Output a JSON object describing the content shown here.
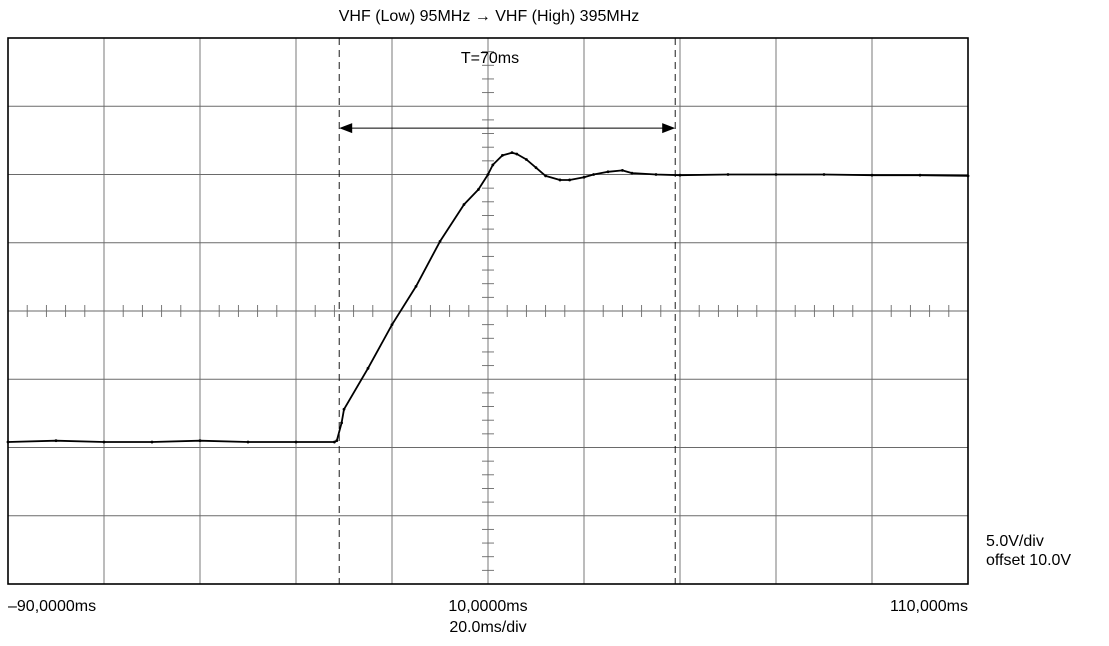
{
  "chart_data": {
    "type": "line",
    "title": "VHF (Low) 95MHz → VHF (High) 395MHz",
    "xlabel": "20.0ms/div",
    "ylabel": "",
    "x_tick_labels": {
      "left": "–90,0000ms",
      "center": "10,0000ms",
      "right": "110,000ms"
    },
    "scale": {
      "volts_per_div": "5.0V/div",
      "offset": "offset 10.0V"
    },
    "xlim": [
      -90,
      110
    ],
    "ylim": [
      -20,
      20
    ],
    "grid": true,
    "annotations": [
      {
        "type": "cursor",
        "x": -21
      },
      {
        "type": "cursor",
        "x": 49
      },
      {
        "type": "interval",
        "x_start": -21,
        "x_end": 49,
        "y": 13.4,
        "text": "T=70ms"
      }
    ],
    "series": [
      {
        "color": "#000000",
        "x": [
          -90,
          -80,
          -70,
          -60,
          -50,
          -40,
          -30,
          -22,
          -21.5,
          -20.5,
          -20,
          -15,
          -10,
          -5,
          0,
          5,
          8,
          10,
          11,
          13,
          15,
          16,
          18,
          20,
          22,
          25,
          27,
          30,
          32,
          35,
          38,
          40,
          45,
          50,
          60,
          70,
          80,
          90,
          100,
          110
        ],
        "y": [
          -9.6,
          -9.5,
          -9.6,
          -9.6,
          -9.5,
          -9.6,
          -9.6,
          -9.6,
          -9.5,
          -8.2,
          -7.2,
          -4.2,
          -1.0,
          1.8,
          5.1,
          7.8,
          8.9,
          10.0,
          10.7,
          11.4,
          11.6,
          11.5,
          11.1,
          10.5,
          9.9,
          9.6,
          9.6,
          9.8,
          10.0,
          10.2,
          10.3,
          10.1,
          10.0,
          9.95,
          10.0,
          10.0,
          10.0,
          9.95,
          9.95,
          9.9
        ]
      }
    ]
  }
}
